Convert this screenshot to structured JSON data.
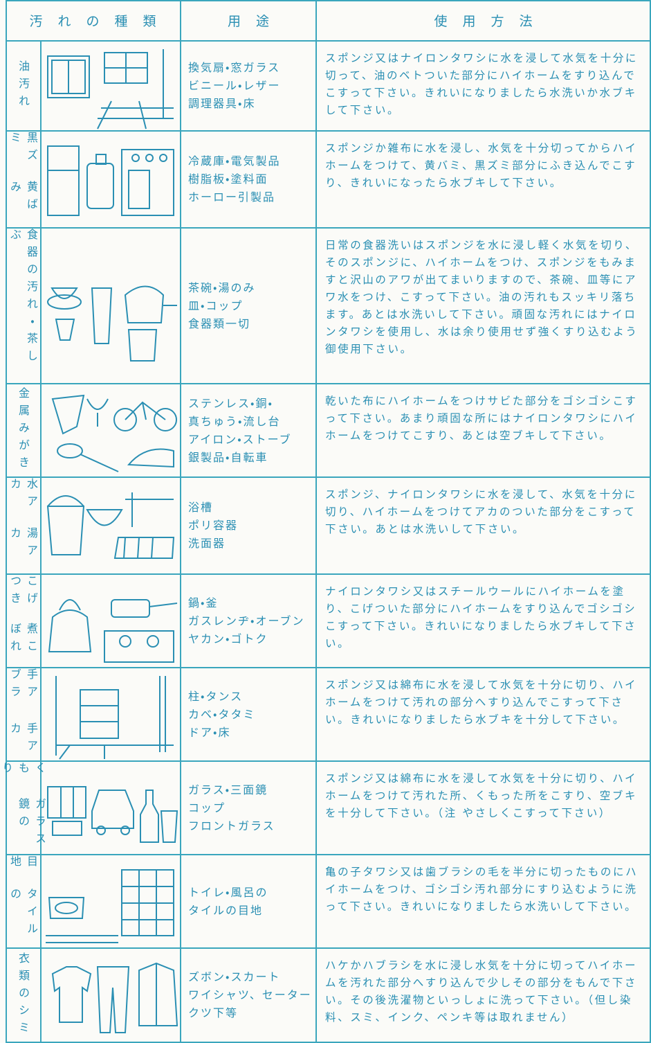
{
  "header": {
    "stain_type": "汚れの種類",
    "use": "用途",
    "method": "使用方法"
  },
  "rows": [
    {
      "stain": [
        "油汚れ"
      ],
      "uses": [
        "換気扇・窓ガラス",
        "ビニール・レザー",
        "調理器具・床"
      ],
      "method": "スポンジ又はナイロンタワシに水を浸して水気を十分に切って、油のベトついた部分にハイホームをすり込んでこすって下さい。きれいになりましたら水洗いか水ブキして下さい。"
    },
    {
      "stain": [
        "黒ズミ",
        "黄ばみ"
      ],
      "uses": [
        "冷蔵庫・電気製品",
        "樹脂板・塗料面",
        "ホーロー引製品"
      ],
      "method": "スポンジか雑布に水を浸し、水気を十分切ってからハイホームをつけて、黄バミ、黒ズミ部分にふき込んでこすり、きれいになったら水ブキして下さい。"
    },
    {
      "stain": [
        "食器の汚れ・茶しぶ"
      ],
      "uses": [
        "茶碗・湯のみ",
        "皿・コップ",
        "食器類一切"
      ],
      "method": "日常の食器洗いはスポンジを水に浸し軽く水気を切り、そのスポンジに、ハイホームをつけ、スポンジをもみますと沢山のアワが出てまいりますので、茶碗、皿等にアワ水をつけ、こすって下さい。油の汚れもスッキリ落ちます。あとは水洗いして下さい。頑固な汚れにはナイロンタワシを使用し、水は余り使用せず強くすり込むよう御使用下さい。"
    },
    {
      "stain": [
        "金属みがき"
      ],
      "uses": [
        "ステンレス・銅・",
        "真ちゅう・流し台",
        "アイロン・ストーブ",
        "銀製品・自転車"
      ],
      "method": "乾いた布にハイホームをつけサビた部分をゴシゴシこすって下さい。あまり頑固な所にはナイロンタワシにハイホームをつけてこすり、あとは空ブキして下さい。"
    },
    {
      "stain": [
        "水アカ",
        "湯アカ"
      ],
      "uses": [
        "浴槽",
        "ポリ容器",
        "洗面器"
      ],
      "method": "スポンジ、ナイロンタワシに水を浸して、水気を十分に切り、ハイホームをつけてアカのついた部分をこすって下さい。あとは水洗いして下さい。"
    },
    {
      "stain": [
        "こげつき",
        "煮こぼれ"
      ],
      "uses": [
        "鍋・釜",
        "ガスレンヂ・オーブン",
        "ヤカン・ゴトク"
      ],
      "method": "ナイロンタワシ又はスチールウールにハイホームを塗り、こげついた部分にハイホームをすり込んでゴシゴシこすって下さい。きれいになりましたら水ブキして下さい。"
    },
    {
      "stain": [
        "手アブラ",
        "手アカ"
      ],
      "uses": [
        "柱・タンス",
        "カベ・タタミ",
        "ドア・床"
      ],
      "method": "スポンジ又は綿布に水を浸して水気を十分に切り、ハイホームをつけて汚れの部分へすり込んでこすって下さい。きれいになりましたら水ブキを十分して下さい。"
    },
    {
      "stain": [
        "くもり",
        "ガラス鏡の"
      ],
      "uses": [
        "ガラス・三面鏡",
        "コップ",
        "フロントガラス"
      ],
      "method": "スポンジ又は綿布に水を浸して水気を十分に切り、ハイホームをつけて汚れた所、くもった所をこすり、空ブキを十分して下さい。（注 やさしくこすって下さい）"
    },
    {
      "stain": [
        "目地",
        "タイルの"
      ],
      "uses": [
        "トイレ・風呂の",
        "タイルの目地"
      ],
      "method": "亀の子タワシ又は歯ブラシの毛を半分に切ったものにハイホームをつけ、ゴシゴシ汚れ部分にすり込むように洗って下さい。きれいになりましたら水洗いして下さい。"
    },
    {
      "stain": [
        "衣類のシミ"
      ],
      "uses": [
        "ズボン・スカート",
        "ワイシャツ、セーター",
        "クツ下等"
      ],
      "method": "ハケかハブラシを水に浸し水気を十分に切ってハイホームを汚れた部分へすり込んで少しその部分をもんで下さい。その後洗濯物といっしょに洗って下さい。（但し染料、スミ、インク、ペンキ等は取れません）"
    }
  ]
}
